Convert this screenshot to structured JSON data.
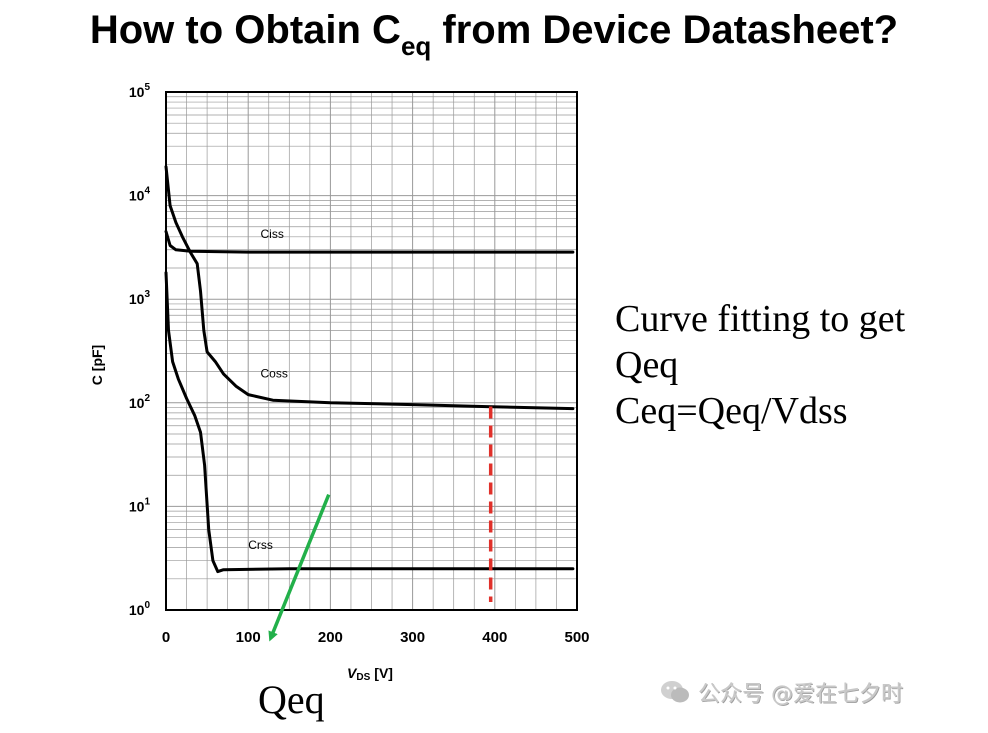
{
  "slide": {
    "title_main": "How to Obtain C",
    "title_sub": "eq",
    "title_rest": " from Device Datasheet?",
    "notes": [
      "Curve fitting to get",
      "Qeq",
      "Ceq=Qeq/Vdss"
    ],
    "arrow_label": "Qeq",
    "watermark": "公众号 @爱在七夕时"
  },
  "colors": {
    "curve": "#000000",
    "grid": "#999999",
    "marker": "#e0302a",
    "arrow": "#22b04a"
  },
  "chart_data": {
    "type": "line",
    "scale": {
      "y": "log"
    },
    "xlabel_main": "V",
    "xlabel_sub": "DS",
    "xlabel_unit": "[V]",
    "ylabel": "C [pF]",
    "xlim": [
      0,
      500
    ],
    "ylim": [
      1,
      100000
    ],
    "xticks": [
      0,
      100,
      200,
      300,
      400,
      500
    ],
    "yticks": [
      {
        "value": 1,
        "base": "10",
        "exp": "0"
      },
      {
        "value": 10,
        "base": "10",
        "exp": "1"
      },
      {
        "value": 100,
        "base": "10",
        "exp": "2"
      },
      {
        "value": 1000,
        "base": "10",
        "exp": "3"
      },
      {
        "value": 10000,
        "base": "10",
        "exp": "4"
      },
      {
        "value": 100000,
        "base": "10",
        "exp": "5"
      }
    ],
    "grid": true,
    "series": [
      {
        "name": "Ciss",
        "label_at": [
          115,
          3900
        ],
        "points": [
          [
            0,
            4500
          ],
          [
            5,
            3300
          ],
          [
            12,
            3000
          ],
          [
            30,
            2900
          ],
          [
            100,
            2850
          ],
          [
            300,
            2850
          ],
          [
            495,
            2850
          ]
        ]
      },
      {
        "name": "Coss",
        "label_at": [
          115,
          175
        ],
        "points": [
          [
            0,
            19000
          ],
          [
            5,
            8000
          ],
          [
            12,
            5500
          ],
          [
            20,
            4000
          ],
          [
            30,
            2800
          ],
          [
            38,
            2200
          ],
          [
            42,
            1200
          ],
          [
            46,
            500
          ],
          [
            50,
            310
          ],
          [
            60,
            250
          ],
          [
            70,
            190
          ],
          [
            85,
            145
          ],
          [
            100,
            120
          ],
          [
            130,
            106
          ],
          [
            200,
            100
          ],
          [
            300,
            96
          ],
          [
            390,
            92
          ],
          [
            495,
            88
          ]
        ]
      },
      {
        "name": "Crss",
        "label_at": [
          100,
          3.9
        ],
        "points": [
          [
            0,
            1800
          ],
          [
            3,
            500
          ],
          [
            8,
            250
          ],
          [
            15,
            170
          ],
          [
            25,
            110
          ],
          [
            35,
            75
          ],
          [
            42,
            52
          ],
          [
            47,
            25
          ],
          [
            52,
            6
          ],
          [
            57,
            3
          ],
          [
            63,
            2.35
          ],
          [
            70,
            2.45
          ],
          [
            150,
            2.5
          ],
          [
            495,
            2.5
          ]
        ]
      }
    ],
    "markers": [
      {
        "kind": "vline",
        "x": 395,
        "from": 1,
        "to": 92
      }
    ],
    "annotations": [
      {
        "kind": "arrow",
        "from": [
          198,
          13
        ],
        "to": [
          128,
          0.55
        ]
      }
    ]
  }
}
